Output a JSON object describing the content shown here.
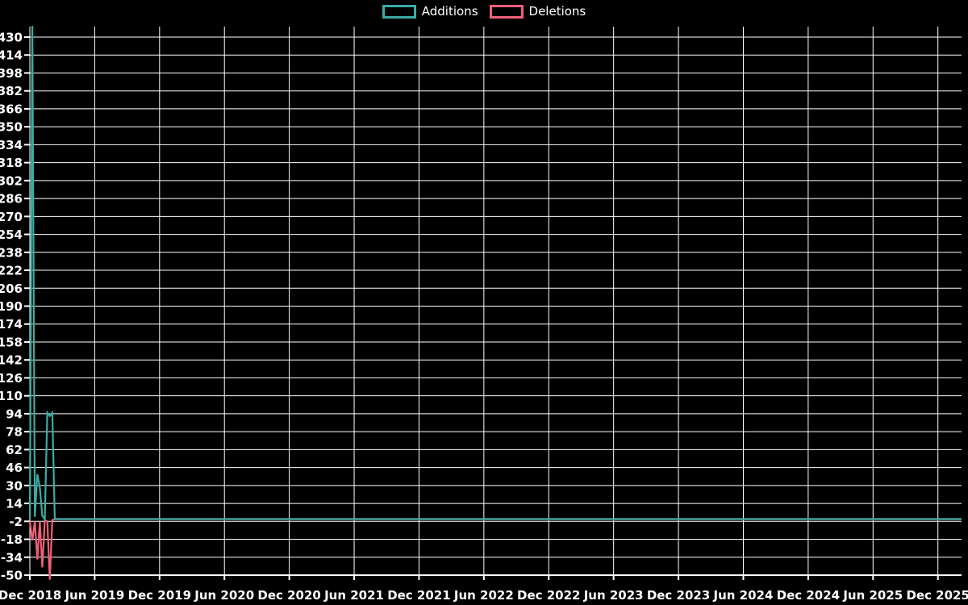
{
  "page": {
    "background_color": "#000000",
    "text_color": "#ffffff"
  },
  "legend": {
    "position": "top-center",
    "items": [
      {
        "label": "Additions",
        "color": "#3aaca4"
      },
      {
        "label": "Deletions",
        "color": "#f25f7a"
      }
    ]
  },
  "chart_data": {
    "type": "line",
    "title": "",
    "grid": true,
    "grid_color": "#ffffff",
    "background_color": "#000000",
    "legend_entries": [
      "Additions",
      "Deletions"
    ],
    "x_axis": {
      "tick_labels": [
        "Dec 2018",
        "Jun 2019",
        "Dec 2019",
        "Jun 2020",
        "Dec 2020",
        "Jun 2021",
        "Dec 2021",
        "Jun 2022",
        "Dec 2022",
        "Jun 2023",
        "Dec 2023",
        "Jun 2024",
        "Dec 2024",
        "Jun 2025",
        "Dec 2025"
      ],
      "weeks_per_tick": 26
    },
    "y_axis": {
      "tick_labels": [
        430,
        414,
        398,
        382,
        366,
        350,
        334,
        318,
        302,
        286,
        270,
        254,
        238,
        222,
        206,
        190,
        174,
        158,
        142,
        126,
        110,
        94,
        78,
        62,
        46,
        30,
        14,
        -2,
        -18,
        -34,
        -50
      ],
      "tick_step": 16,
      "visible_min": -56,
      "visible_max": 439
    },
    "series": [
      {
        "name": "Additions",
        "color": "#3aaca4",
        "points": [
          {
            "week": 0,
            "value": 0
          },
          {
            "week": 1,
            "value": 440
          },
          {
            "week": 2,
            "value": 2
          },
          {
            "week": 3,
            "value": 40
          },
          {
            "week": 4,
            "value": 28
          },
          {
            "week": 5,
            "value": 3
          },
          {
            "week": 6,
            "value": 0
          },
          {
            "week": 7,
            "value": 95
          },
          {
            "week": 8,
            "value": 92
          },
          {
            "week": 9,
            "value": 95
          },
          {
            "week": 10,
            "value": 0
          }
        ],
        "flat_zero_tail_to_chart_right": true
      },
      {
        "name": "Deletions",
        "color": "#f25f7a",
        "points": [
          {
            "week": 0,
            "value": -2
          },
          {
            "week": 1,
            "value": -19
          },
          {
            "week": 2,
            "value": -2
          },
          {
            "week": 3,
            "value": -36
          },
          {
            "week": 4,
            "value": -2
          },
          {
            "week": 5,
            "value": -43
          },
          {
            "week": 6,
            "value": -1
          },
          {
            "week": 7,
            "value": -2
          },
          {
            "week": 8,
            "value": -54
          },
          {
            "week": 9,
            "value": -1
          },
          {
            "week": 10,
            "value": 0
          }
        ],
        "flat_zero_tail_to_chart_right": true
      }
    ]
  }
}
